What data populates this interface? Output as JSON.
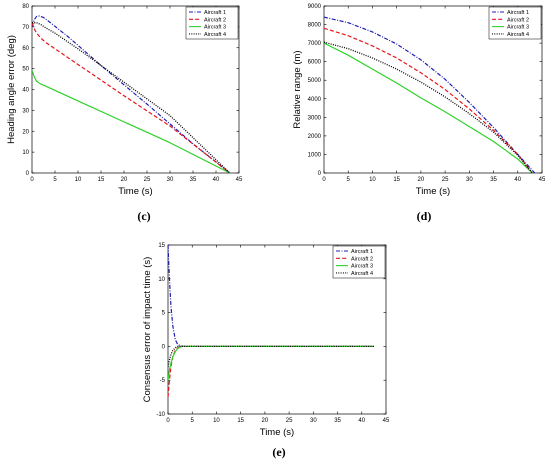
{
  "figure": {
    "panel_labels": [
      "(c)",
      "(d)",
      "(e)"
    ]
  },
  "colors": {
    "aircraft_1": "#1f1fb4",
    "aircraft_2": "#e8171b",
    "aircraft_3": "#2fd22a",
    "aircraft_4": "#000000",
    "axes": "#000000",
    "background": "#ffffff"
  },
  "chart_data": [
    {
      "id": "c",
      "type": "line",
      "xlabel": "Time (s)",
      "ylabel": "Heading angle error (deg)",
      "xlim": [
        0,
        45
      ],
      "ylim": [
        0,
        80
      ],
      "xticks": [
        0,
        5,
        10,
        15,
        20,
        25,
        30,
        35,
        40,
        45
      ],
      "yticks": [
        0,
        10,
        20,
        30,
        40,
        50,
        60,
        70,
        80
      ],
      "legend_position": "top-right",
      "grid": false,
      "series": [
        {
          "name": "Aircraft 1",
          "style": "dashdot",
          "x": [
            0,
            0.5,
            1,
            1.6,
            2.5,
            4,
            8,
            15,
            25,
            35,
            43
          ],
          "y": [
            70,
            73.5,
            75,
            75.2,
            74.5,
            72,
            65,
            51.5,
            33,
            14,
            0
          ]
        },
        {
          "name": "Aircraft 2",
          "style": "dashed",
          "x": [
            0,
            0.5,
            1,
            2,
            3,
            5,
            10,
            20,
            30,
            43
          ],
          "y": [
            72,
            69,
            67,
            64.5,
            62.5,
            59.5,
            52,
            37,
            22.5,
            0
          ]
        },
        {
          "name": "Aircraft 3",
          "style": "solid",
          "x": [
            0,
            0.2,
            0.5,
            1,
            1.5,
            2,
            3,
            10,
            20,
            30,
            43
          ],
          "y": [
            49,
            48,
            46,
            44,
            43.2,
            42.5,
            41.6,
            34.5,
            24.5,
            14.5,
            0
          ]
        },
        {
          "name": "Aircraft 4",
          "style": "dotted",
          "x": [
            0,
            1,
            2,
            3,
            5,
            10,
            20,
            30,
            43
          ],
          "y": [
            72,
            72,
            71,
            69.5,
            67,
            59.5,
            43.5,
            27.5,
            0
          ]
        }
      ]
    },
    {
      "id": "d",
      "type": "line",
      "xlabel": "Time (s)",
      "ylabel": "Relative range (m)",
      "xlim": [
        0,
        45
      ],
      "ylim": [
        0,
        9000
      ],
      "xticks": [
        0,
        5,
        10,
        15,
        20,
        25,
        30,
        35,
        40,
        45
      ],
      "yticks": [
        0,
        1000,
        2000,
        3000,
        4000,
        5000,
        6000,
        7000,
        8000,
        9000
      ],
      "legend_position": "top-right",
      "grid": false,
      "series": [
        {
          "name": "Aircraft 1",
          "style": "dashdot",
          "x": [
            0,
            5,
            10,
            15,
            20,
            25,
            30,
            35,
            40,
            43.5
          ],
          "y": [
            8400,
            8100,
            7600,
            6950,
            6100,
            5050,
            3800,
            2450,
            1000,
            0
          ]
        },
        {
          "name": "Aircraft 2",
          "style": "dashed",
          "x": [
            0,
            5,
            10,
            15,
            20,
            25,
            30,
            35,
            40,
            43
          ],
          "y": [
            7800,
            7400,
            6850,
            6200,
            5400,
            4500,
            3450,
            2300,
            1000,
            0
          ]
        },
        {
          "name": "Aircraft 3",
          "style": "solid",
          "x": [
            0,
            5,
            10,
            15,
            20,
            25,
            30,
            35,
            40,
            43
          ],
          "y": [
            7000,
            6350,
            5600,
            4850,
            4050,
            3300,
            2500,
            1700,
            750,
            0
          ]
        },
        {
          "name": "Aircraft 4",
          "style": "dotted",
          "x": [
            0,
            5,
            10,
            15,
            20,
            25,
            30,
            35,
            40,
            43
          ],
          "y": [
            7050,
            6700,
            6200,
            5600,
            4900,
            4100,
            3200,
            2200,
            950,
            0
          ]
        }
      ]
    },
    {
      "id": "e",
      "type": "line",
      "xlabel": "Time (s)",
      "ylabel": "Consensus error of impact time (s)",
      "xlim": [
        0,
        45
      ],
      "ylim": [
        -10,
        15
      ],
      "xticks": [
        0,
        5,
        10,
        15,
        20,
        25,
        30,
        35,
        40,
        45
      ],
      "yticks": [
        -10,
        -5,
        0,
        5,
        10,
        15
      ],
      "legend_position": "top-right",
      "grid": false,
      "series": [
        {
          "name": "Aircraft 1",
          "style": "dashdot",
          "x": [
            0,
            0.3,
            0.6,
            1,
            1.5,
            2,
            2.5,
            3,
            4,
            42.5
          ],
          "y": [
            15,
            10,
            6,
            3,
            1,
            0.3,
            0.1,
            0,
            0,
            0
          ]
        },
        {
          "name": "Aircraft 2",
          "style": "dashed",
          "x": [
            0,
            0.3,
            0.6,
            1,
            1.5,
            2,
            2.5,
            3,
            4,
            42.5
          ],
          "y": [
            -7.5,
            -5,
            -3,
            -1.5,
            -0.6,
            -0.2,
            -0.05,
            0,
            0,
            0
          ]
        },
        {
          "name": "Aircraft 3",
          "style": "solid",
          "x": [
            0,
            0.3,
            0.6,
            1,
            1.5,
            2,
            2.5,
            3,
            4,
            42.5
          ],
          "y": [
            -5,
            -3.5,
            -2.5,
            -1.5,
            -0.8,
            -0.3,
            -0.1,
            0,
            0,
            0
          ]
        },
        {
          "name": "Aircraft 4",
          "style": "dotted",
          "x": [
            0,
            0.3,
            0.6,
            1,
            1.5,
            2,
            2.5,
            3,
            4,
            42.5
          ],
          "y": [
            -3,
            -2,
            -1.2,
            -0.6,
            -0.2,
            0,
            0,
            0,
            0,
            0
          ]
        }
      ]
    }
  ]
}
